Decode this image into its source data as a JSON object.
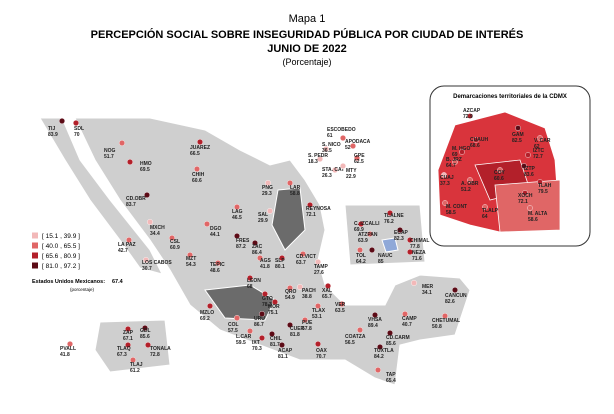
{
  "header": {
    "map_number": "Mapa 1",
    "title": "PERCEPCIÓN SOCIAL SOBRE INSEGURIDAD PÚBLICA POR CIUDAD DE INTERÉS",
    "date": "JUNIO DE 2022",
    "unit": "(Porcentaje)"
  },
  "legend": {
    "items": [
      {
        "label": "[ 15.1 , 39.9 ]",
        "range": [
          15.1,
          39.9
        ],
        "color": "#f2b8b8"
      },
      {
        "label": "[ 40.0 , 65.5 ]",
        "range": [
          40.0,
          65.5
        ],
        "color": "#e06666"
      },
      {
        "label": "[ 65.6 , 80.9 ]",
        "range": [
          65.6,
          80.9
        ],
        "color": "#b3202a"
      },
      {
        "label": "[ 81.0 , 97.2 ]",
        "range": [
          81.0,
          97.2
        ],
        "color": "#5c0b16"
      }
    ],
    "national_label": "Estados Unidos Mexicanos:",
    "national_value": 67.4,
    "note": "(porcentaje)"
  },
  "cities": [
    {
      "name": "TIJ",
      "value": 83.9
    },
    {
      "name": "SDL",
      "value": 70.0
    },
    {
      "name": "NOG",
      "value": 51.7
    },
    {
      "name": "JUAREZ",
      "value": 66.5
    },
    {
      "name": "HMO",
      "value": 69.5
    },
    {
      "name": "CHIH",
      "value": 60.6
    },
    {
      "name": "CD.OBR",
      "value": 83.7
    },
    {
      "name": "MXCH",
      "value": 34.4
    },
    {
      "name": "LA PAZ",
      "value": 42.7
    },
    {
      "name": "LOS CABOS",
      "value": 30.7
    },
    {
      "name": "CSL",
      "value": 60.9
    },
    {
      "name": "DGO",
      "value": 44.1
    },
    {
      "name": "MZT",
      "value": 54.3
    },
    {
      "name": "TEPIC",
      "value": 48.6
    },
    {
      "name": "LAG",
      "value": 46.5
    },
    {
      "name": "SAL",
      "value": 29.9
    },
    {
      "name": "PNG",
      "value": 29.3
    },
    {
      "name": "LAR",
      "value": 58.8
    },
    {
      "name": "ESCOBEDO",
      "value": 61.0
    },
    {
      "name": "S. NICO",
      "value": 36.5
    },
    {
      "name": "APODACA",
      "value": 52.0
    },
    {
      "name": "S. PEDR",
      "value": 18.3
    },
    {
      "name": "GPE",
      "value": 62.5
    },
    {
      "name": "STA. CAT",
      "value": 26.3
    },
    {
      "name": "MTY",
      "value": 22.9
    },
    {
      "name": "REYNOSA",
      "value": 72.1
    },
    {
      "name": "TAMP",
      "value": 27.6
    },
    {
      "name": "FRES",
      "value": 87.2
    },
    {
      "name": "ZAC",
      "value": 86.4
    },
    {
      "name": "AGS",
      "value": 41.8
    },
    {
      "name": "SLP",
      "value": 80.1
    },
    {
      "name": "CD.VICT",
      "value": 63.7
    },
    {
      "name": "LEON",
      "value": 68.0
    },
    {
      "name": "GTO",
      "value": 78.3
    },
    {
      "name": "QRO",
      "value": 54.9
    },
    {
      "name": "PACH",
      "value": 38.8
    },
    {
      "name": "XAL",
      "value": 65.7
    },
    {
      "name": "VER",
      "value": 63.5
    },
    {
      "name": "TLAX",
      "value": 53.1
    },
    {
      "name": "PUE",
      "value": 57.8
    },
    {
      "name": "MZLO",
      "value": 69.2
    },
    {
      "name": "COL",
      "value": 57.5
    },
    {
      "name": "URU",
      "value": 86.7
    },
    {
      "name": "MOR",
      "value": 75.1
    },
    {
      "name": "CUER",
      "value": 81.8
    },
    {
      "name": "L.CAR",
      "value": 59.5
    },
    {
      "name": "IXT",
      "value": 70.3
    },
    {
      "name": "CHIL",
      "value": 81.7
    },
    {
      "name": "ACAP",
      "value": 81.1
    },
    {
      "name": "OAX",
      "value": 70.7
    },
    {
      "name": "COATZA",
      "value": 56.5
    },
    {
      "name": "VHSA",
      "value": 89.4
    },
    {
      "name": "CAMP",
      "value": 40.7
    },
    {
      "name": "CD.CARM",
      "value": 85.6
    },
    {
      "name": "TUXTLA",
      "value": 84.2
    },
    {
      "name": "TAP",
      "value": 65.4
    },
    {
      "name": "CHETUMAL",
      "value": 50.8
    },
    {
      "name": "CANCUN",
      "value": 82.6
    },
    {
      "name": "MER",
      "value": 34.1
    },
    {
      "name": "ZAP",
      "value": 67.1
    },
    {
      "name": "GDL",
      "value": 85.6
    },
    {
      "name": "TLAQ",
      "value": 67.3
    },
    {
      "name": "TONALA",
      "value": 72.8
    },
    {
      "name": "TLAJ",
      "value": 61.2
    },
    {
      "name": "PVALL",
      "value": 41.8
    },
    {
      "name": "TLALNE",
      "value": 76.2
    },
    {
      "name": "C. IZCALLI",
      "value": 69.9
    },
    {
      "name": "ATZPAN",
      "value": 63.9
    },
    {
      "name": "ECAP",
      "value": 82.3
    },
    {
      "name": "CHIMAL",
      "value": 77.8
    },
    {
      "name": "NEZA",
      "value": 71.6
    },
    {
      "name": "NAUC",
      "value": 85.0
    },
    {
      "name": "TOL",
      "value": 64.2
    }
  ],
  "cdmx": {
    "title": "Demarcaciones territoriales de la CDMX",
    "districts": [
      {
        "name": "AZCAP",
        "value": 72.9
      },
      {
        "name": "GAM",
        "value": 82.5
      },
      {
        "name": "CUAUH",
        "value": 68.6
      },
      {
        "name": "V. CAR",
        "value": 62.0
      },
      {
        "name": "M. HGO",
        "value": 69.0
      },
      {
        "name": "IZTC",
        "value": 72.7
      },
      {
        "name": "B. JRZ",
        "value": 64.7
      },
      {
        "name": "COY",
        "value": 60.6
      },
      {
        "name": "IZTP",
        "value": 83.6
      },
      {
        "name": "CUAJ",
        "value": 37.3
      },
      {
        "name": "A. OBR",
        "value": 51.2
      },
      {
        "name": "TLAH",
        "value": 79.5
      },
      {
        "name": "XOCH",
        "value": 72.1
      },
      {
        "name": "M. CONT",
        "value": 58.5
      },
      {
        "name": "TLALP",
        "value": 64.0
      },
      {
        "name": "M. ALTA",
        "value": 58.6
      }
    ]
  }
}
